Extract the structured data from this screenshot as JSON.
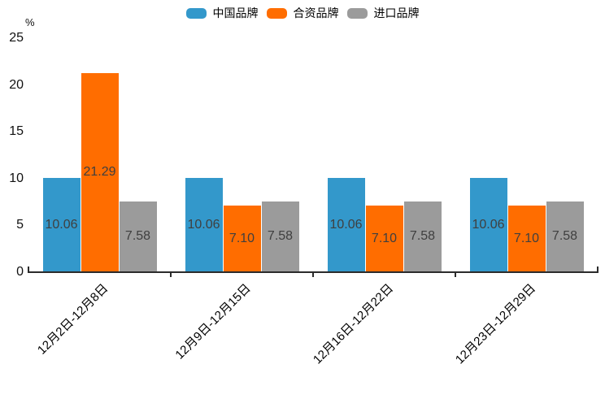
{
  "chart_data": {
    "type": "bar",
    "unit_label": "%",
    "categories": [
      "12月2日-12月8日",
      "12月9日-12月15日",
      "12月16日-12月22日",
      "12月23日-12月29日"
    ],
    "series": [
      {
        "name": "中国品牌",
        "color": "#3398cb",
        "values": [
          10.06,
          10.06,
          10.06,
          10.06
        ]
      },
      {
        "name": "合资品牌",
        "color": "#ff6d00",
        "values": [
          21.29,
          7.1,
          7.1,
          7.1
        ]
      },
      {
        "name": "进口品牌",
        "color": "#9b9b9b",
        "values": [
          7.58,
          7.58,
          7.58,
          7.58
        ]
      }
    ],
    "yticks": [
      0,
      5,
      10,
      15,
      20,
      25
    ],
    "ylim": [
      0,
      25
    ],
    "legend_position": "top",
    "grid": false,
    "value_label_format": "2-decimals-inside-bar"
  },
  "colors": {
    "axis": "#2b2b2b",
    "value_label": "#3f3f3f",
    "tick_label": "#111111",
    "background": "#ffffff"
  }
}
